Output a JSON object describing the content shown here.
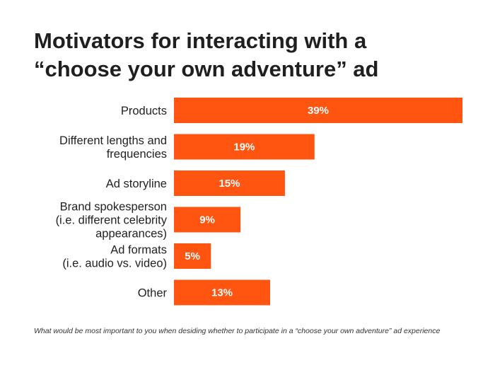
{
  "chart_data": {
    "type": "bar",
    "orientation": "horizontal",
    "title_lines": [
      "Motivators for interacting with a",
      "“choose your own adventure” ad"
    ],
    "categories": [
      [
        "Products"
      ],
      [
        "Different lengths and",
        "frequencies"
      ],
      [
        "Ad storyline"
      ],
      [
        "Brand spokesperson",
        "(i.e. different celebrity",
        "appearances)"
      ],
      [
        "Ad formats",
        "(i.e. audio vs. video)"
      ],
      [
        "Other"
      ]
    ],
    "values": [
      39,
      19,
      15,
      9,
      5,
      13
    ],
    "value_labels": [
      "39%",
      "19%",
      "15%",
      "9%",
      "5%",
      "13%"
    ],
    "unit": "%",
    "xlim": [
      0,
      39
    ],
    "grid": false,
    "legend": "none",
    "bar_color": "#ff5510",
    "footnote": "What would be most important to you when desiding whether to participate in a “choose your own adventure” ad experience"
  }
}
